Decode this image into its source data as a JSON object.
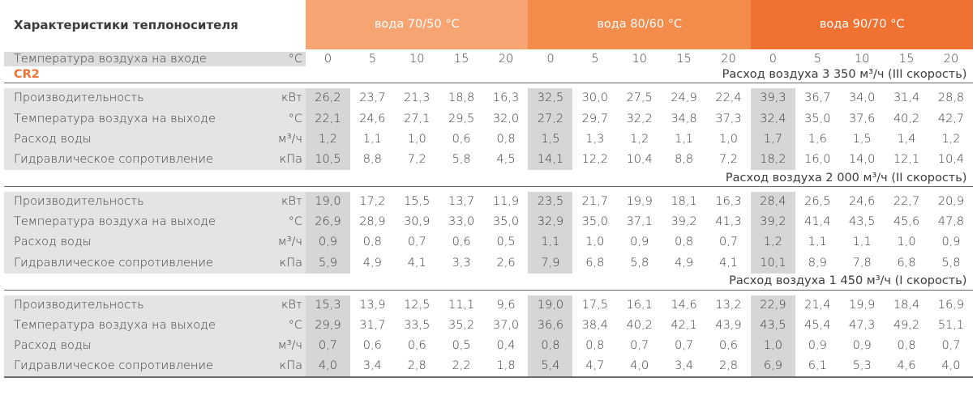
{
  "title": "Характеристики теплоносителя",
  "column_groups": [
    "вода 70/50 °C",
    "вода 80/60 °C",
    "вода 90/70 °C"
  ],
  "inlet_row": {
    "label": "Температура воздуха на входе",
    "unit": "°C",
    "values": [
      "0",
      "5",
      "10",
      "15",
      "20",
      "0",
      "5",
      "10",
      "15",
      "20",
      "0",
      "5",
      "10",
      "15",
      "20"
    ]
  },
  "model": "CR2",
  "sections": [
    {
      "title": "Расход воздуха 3 350 м³/ч (III скорость)",
      "rows": [
        {
          "label": "Производительность",
          "unit": "кВт",
          "values": [
            "26,2",
            "23,7",
            "21,3",
            "18,8",
            "16,3",
            "32,5",
            "30,0",
            "27,5",
            "24,9",
            "22,4",
            "39,3",
            "36,7",
            "34,0",
            "31,4",
            "28,8"
          ]
        },
        {
          "label": "Температура воздуха на выходе",
          "unit": "°C",
          "values": [
            "22,1",
            "24,6",
            "27,1",
            "29,5",
            "32,0",
            "27,2",
            "29,7",
            "32,2",
            "34,8",
            "37,3",
            "32,4",
            "35,0",
            "37,6",
            "40,2",
            "42,7"
          ]
        },
        {
          "label": "Расход воды",
          "unit": "м³/ч",
          "values": [
            "1,2",
            "1,1",
            "1,0",
            "0,6",
            "0,8",
            "1,5",
            "1,3",
            "1,2",
            "1,1",
            "1,0",
            "1,7",
            "1,6",
            "1,5",
            "1,4",
            "1,2"
          ]
        },
        {
          "label": "Гидравлическое сопротивление",
          "unit": "кПа",
          "values": [
            "10,5",
            "8,8",
            "7,2",
            "5,8",
            "4,5",
            "14,1",
            "12,2",
            "10,4",
            "8,8",
            "7,2",
            "18,2",
            "16,0",
            "14,0",
            "12,1",
            "10,4"
          ]
        }
      ]
    },
    {
      "title": "Расход воздуха 2 000 м³/ч (II скорость)",
      "rows": [
        {
          "label": "Производительность",
          "unit": "кВт",
          "values": [
            "19,0",
            "17,2",
            "15,5",
            "13,7",
            "11,9",
            "23,5",
            "21,7",
            "19,9",
            "18,1",
            "16,3",
            "28,4",
            "26,5",
            "24,6",
            "22,7",
            "20,9"
          ]
        },
        {
          "label": "Температура воздуха на выходе",
          "unit": "°C",
          "values": [
            "26,9",
            "28,9",
            "30,9",
            "33,0",
            "35,0",
            "32,9",
            "35,0",
            "37,1",
            "39,2",
            "41,3",
            "39,2",
            "41,4",
            "43,5",
            "45,6",
            "47,8"
          ]
        },
        {
          "label": "Расход воды",
          "unit": "м³/ч",
          "values": [
            "0,9",
            "0,8",
            "0,7",
            "0,6",
            "0,5",
            "1,1",
            "1,0",
            "0,9",
            "0,8",
            "0,7",
            "1,2",
            "1,1",
            "1,1",
            "1,0",
            "0,9"
          ]
        },
        {
          "label": "Гидравлическое сопротивление",
          "unit": "кПа",
          "values": [
            "5,9",
            "4,9",
            "4,1",
            "3,3",
            "2,6",
            "7,9",
            "6,8",
            "5,8",
            "4,9",
            "4,1",
            "10,1",
            "8,9",
            "7,8",
            "6,8",
            "5,8"
          ]
        }
      ]
    },
    {
      "title": "Расход воздуха 1 450 м³/ч (I скорость)",
      "rows": [
        {
          "label": "Производительность",
          "unit": "кВт",
          "values": [
            "15,3",
            "13,9",
            "12,5",
            "11,1",
            "9,6",
            "19,0",
            "17,5",
            "16,1",
            "14,6",
            "13,2",
            "22,9",
            "21,4",
            "19,9",
            "18,4",
            "16,9"
          ]
        },
        {
          "label": "Температура воздуха на выходе",
          "unit": "°C",
          "values": [
            "29,9",
            "31,7",
            "33,5",
            "35,2",
            "37,0",
            "36,6",
            "38,4",
            "40,2",
            "42,1",
            "43,9",
            "43,5",
            "45,4",
            "47,3",
            "49,2",
            "51,1"
          ]
        },
        {
          "label": "Расход воды",
          "unit": "м³/ч",
          "values": [
            "0,7",
            "0,6",
            "0,6",
            "0,5",
            "0,4",
            "0,8",
            "0,8",
            "0,7",
            "0,7",
            "0,6",
            "1,0",
            "0,9",
            "0,9",
            "0,8",
            "0,7"
          ]
        },
        {
          "label": "Гидравлическое сопротивление",
          "unit": "кПа",
          "values": [
            "4,0",
            "3,4",
            "2,8",
            "2,2",
            "1,8",
            "5,4",
            "4,7",
            "4,0",
            "3,4",
            "2,8",
            "6,9",
            "6,1",
            "5,3",
            "4,6",
            "4,0"
          ]
        }
      ]
    }
  ]
}
